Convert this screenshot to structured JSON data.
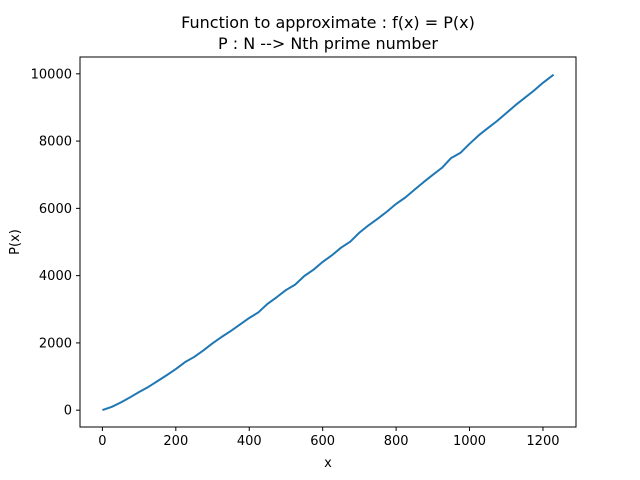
{
  "chart_data": {
    "type": "line",
    "title": "Function to approximate : f(x) = P(x)",
    "subtitle": "P : N --> Nth prime number",
    "xlabel": "x",
    "ylabel": "P(x)",
    "xlim": [
      -61,
      1290
    ],
    "ylim": [
      -500,
      10500
    ],
    "xticks": [
      0,
      200,
      400,
      600,
      800,
      1000,
      1200
    ],
    "yticks": [
      0,
      2000,
      4000,
      6000,
      8000,
      10000
    ],
    "grid": false,
    "line_color": "#1f77b4",
    "series": [
      {
        "x": [
          0,
          25,
          50,
          75,
          100,
          125,
          150,
          175,
          200,
          225,
          250,
          275,
          300,
          325,
          350,
          375,
          400,
          425,
          450,
          475,
          500,
          525,
          550,
          575,
          600,
          625,
          650,
          675,
          700,
          725,
          750,
          775,
          800,
          825,
          850,
          875,
          900,
          925,
          950,
          975,
          1000,
          1025,
          1050,
          1075,
          1100,
          1125,
          1150,
          1175,
          1200,
          1229
        ],
        "values": [
          2,
          97,
          229,
          379,
          541,
          691,
          863,
          1039,
          1223,
          1427,
          1583,
          1777,
          1987,
          2179,
          2357,
          2549,
          2741,
          2909,
          3163,
          3361,
          3571,
          3733,
          3989,
          4177,
          4409,
          4603,
          4831,
          5009,
          5279,
          5497,
          5693,
          5903,
          6133,
          6323,
          6553,
          6781,
          6997,
          7207,
          7499,
          7649,
          7919,
          8171,
          8387,
          8597,
          8831,
          9067,
          9283,
          9497,
          9733,
          9973
        ]
      }
    ]
  }
}
